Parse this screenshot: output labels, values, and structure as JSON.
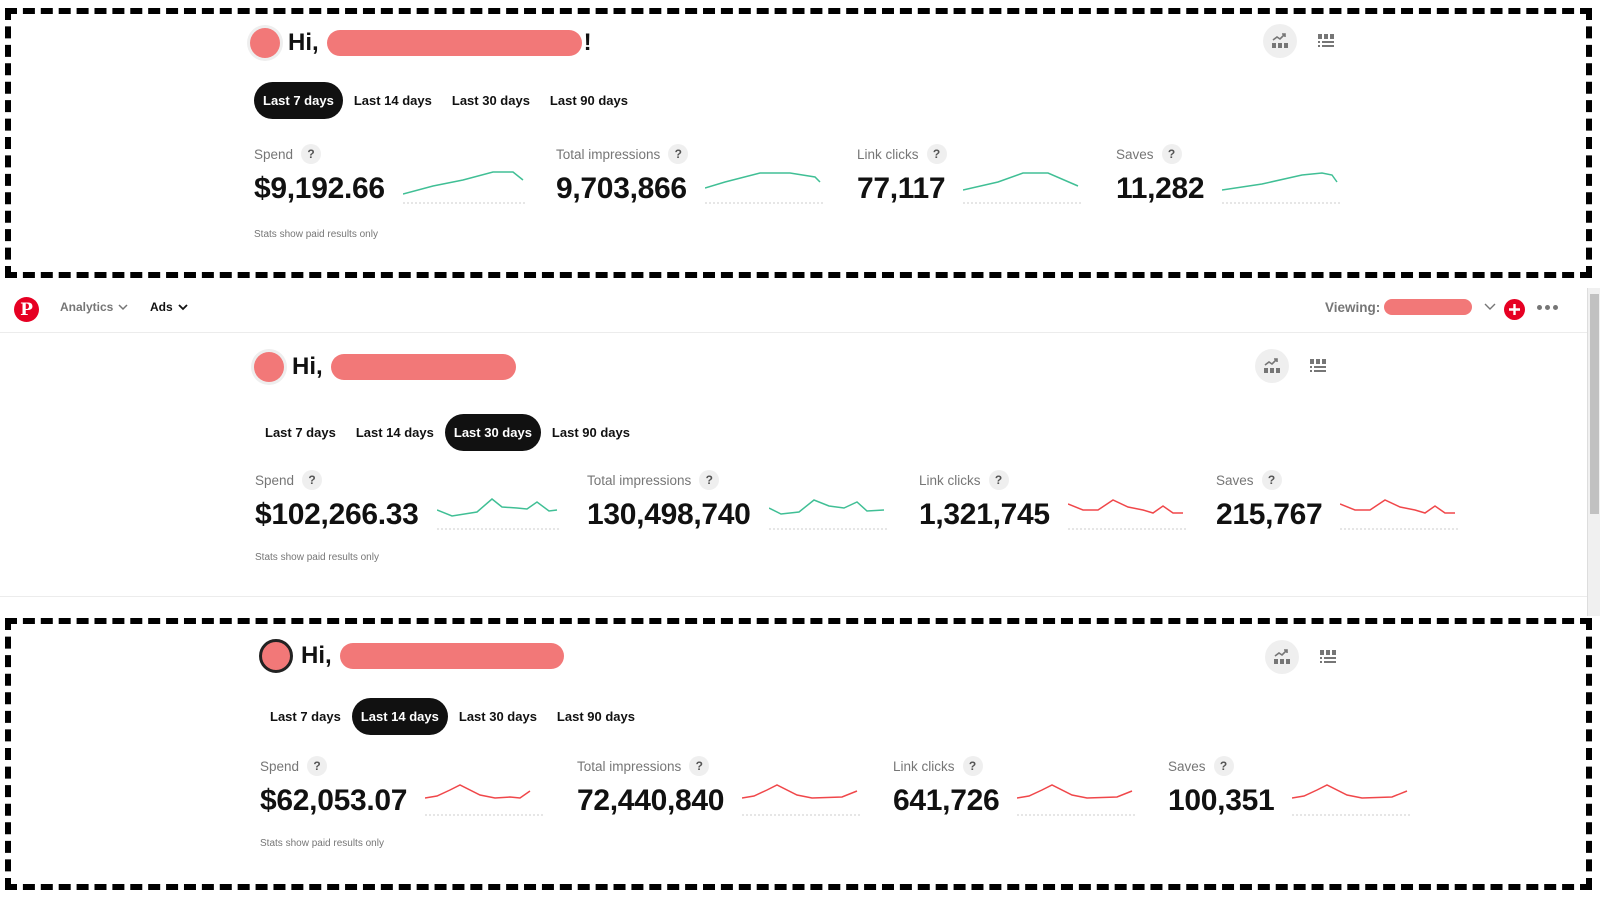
{
  "greeting_prefix": "Hi,",
  "greeting_suffix": "!",
  "footnote": "Stats show paid results only",
  "date_ranges": [
    "Last 7 days",
    "Last 14 days",
    "Last 30 days",
    "Last 90 days"
  ],
  "view_toggle": {
    "chart_view": "chart-view-icon",
    "table_view": "table-view-icon"
  },
  "colors": {
    "positive_trend": "#40bf95",
    "negative_trend": "#f0474a",
    "brand": "#e60023",
    "active_tab_bg": "#111111"
  },
  "navbar": {
    "logo": "pinterest-logo",
    "analytics_label": "Analytics",
    "ads_label": "Ads",
    "viewing_label": "Viewing:"
  },
  "panels": [
    {
      "id": "p1",
      "selected_range": "Last 7 days",
      "metrics": [
        {
          "label": "Spend",
          "value": "$9,192.66",
          "trend": "up"
        },
        {
          "label": "Total impressions",
          "value": "9,703,866",
          "trend": "up"
        },
        {
          "label": "Link clicks",
          "value": "77,117",
          "trend": "up"
        },
        {
          "label": "Saves",
          "value": "11,282",
          "trend": "up"
        }
      ]
    },
    {
      "id": "p2",
      "selected_range": "Last 30 days",
      "metrics": [
        {
          "label": "Spend",
          "value": "$102,266.33",
          "trend": "up"
        },
        {
          "label": "Total impressions",
          "value": "130,498,740",
          "trend": "up"
        },
        {
          "label": "Link clicks",
          "value": "1,321,745",
          "trend": "down"
        },
        {
          "label": "Saves",
          "value": "215,767",
          "trend": "down"
        }
      ]
    },
    {
      "id": "p3",
      "selected_range": "Last 14 days",
      "metrics": [
        {
          "label": "Spend",
          "value": "$62,053.07",
          "trend": "down"
        },
        {
          "label": "Total impressions",
          "value": "72,440,840",
          "trend": "down"
        },
        {
          "label": "Link clicks",
          "value": "641,726",
          "trend": "down"
        },
        {
          "label": "Saves",
          "value": "100,351",
          "trend": "down"
        }
      ]
    }
  ],
  "sparklines": {
    "p1_0": "0,24 30,16 60,10 90,2 110,2 120,10",
    "p1_1": "0,18 20,12 55,3 85,3 110,7 115,12",
    "p1_2": "0,20 35,12 60,3 85,3 115,16",
    "p1_3": "0,20 40,14 80,5 100,3 110,5 115,12",
    "p2_0": "0,14 15,20 40,16 55,3 65,11 80,12 90,13 100,6 112,15 120,14",
    "p2_1": "0,12 12,18 30,16 45,4 60,10 75,12 88,6 98,15 115,14",
    "p2_2": "0,8 15,14 30,14 45,4 60,11 75,14 85,17 95,10 105,17 115,17",
    "p2_3": "0,8 15,14 30,14 45,4 60,11 75,14 85,17 95,10 105,17 115,17",
    "p3_0": "0,16 12,14 25,8 35,3 55,13 70,16 85,15 95,16 105,9",
    "p3_1": "0,16 12,14 25,8 35,3 55,13 70,16 100,15 115,9",
    "p3_2": "0,16 12,14 25,8 35,3 55,13 70,16 100,15 115,9",
    "p3_3": "0,16 12,14 25,8 35,3 55,13 70,16 100,15 115,9"
  }
}
